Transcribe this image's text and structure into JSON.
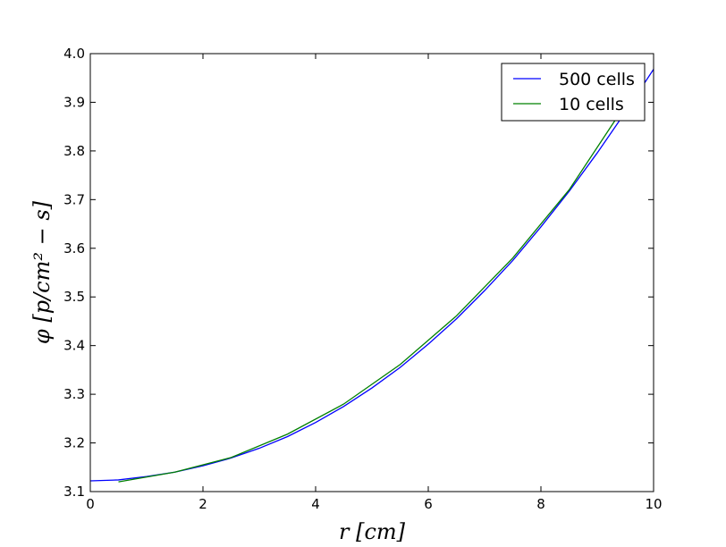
{
  "chart_data": {
    "type": "line",
    "xlabel": "r [cm]",
    "ylabel": "φ [p/cm² − s]",
    "xlim": [
      0,
      10
    ],
    "ylim": [
      3.1,
      4.0
    ],
    "xticks": [
      "0",
      "2",
      "4",
      "6",
      "8",
      "10"
    ],
    "yticks": [
      "3.1",
      "3.2",
      "3.3",
      "3.4",
      "3.5",
      "3.6",
      "3.7",
      "3.8",
      "3.9",
      "4.0"
    ],
    "grid": false,
    "legend_position": "top-right",
    "series": [
      {
        "name": "500 cells",
        "color": "#0000ff",
        "x": [
          0,
          0.5,
          1,
          1.5,
          2,
          2.5,
          3,
          3.5,
          4,
          4.5,
          5,
          5.5,
          6,
          6.5,
          7,
          7.5,
          8,
          8.5,
          9,
          9.5,
          10
        ],
        "y": [
          3.122,
          3.124,
          3.131,
          3.14,
          3.153,
          3.169,
          3.189,
          3.213,
          3.242,
          3.275,
          3.313,
          3.355,
          3.403,
          3.455,
          3.513,
          3.575,
          3.644,
          3.717,
          3.796,
          3.88,
          3.968
        ]
      },
      {
        "name": "10 cells",
        "color": "#008000",
        "x": [
          0.5,
          1.5,
          2.5,
          3.5,
          4.5,
          5.5,
          6.5,
          7.5,
          8.5,
          9.5
        ],
        "y": [
          3.12,
          3.14,
          3.17,
          3.218,
          3.28,
          3.361,
          3.461,
          3.58,
          3.72,
          3.895
        ]
      }
    ]
  }
}
